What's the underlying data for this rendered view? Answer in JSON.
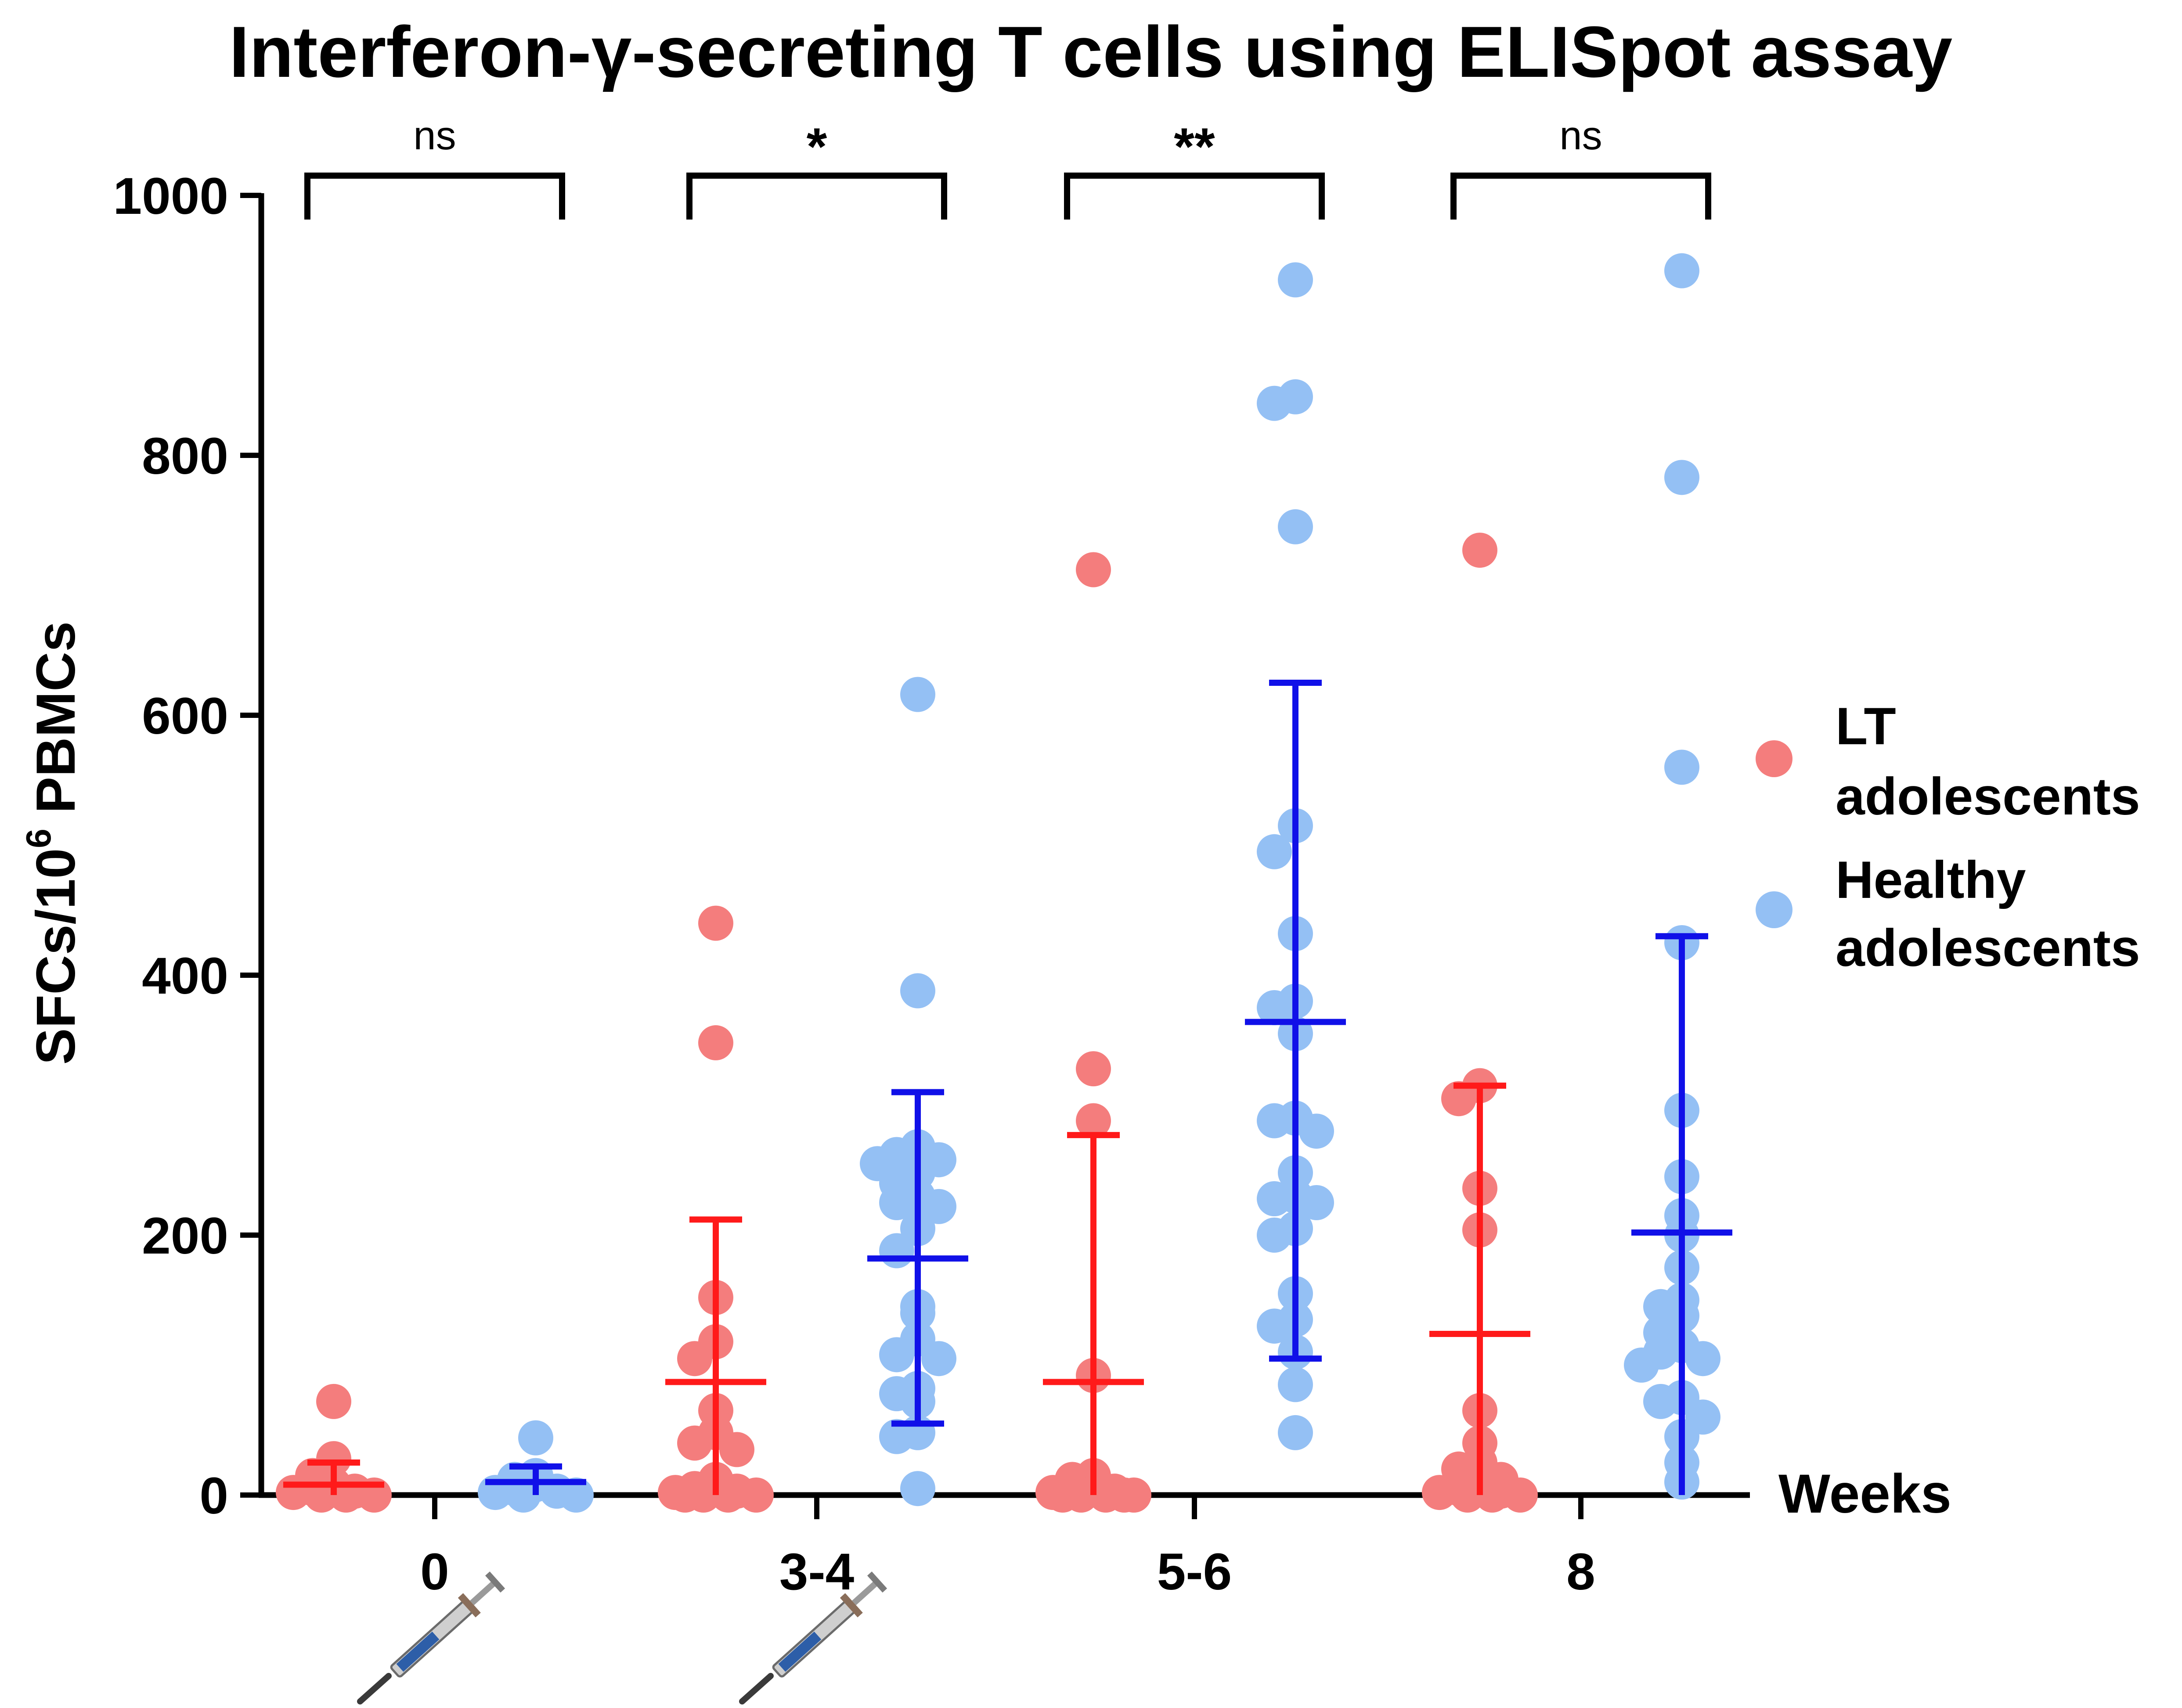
{
  "chart_data": {
    "type": "scatter",
    "title": "Interferon-γ-secreting T cells using ELISpot assay",
    "ylabel_main": "SFCs/10",
    "ylabel_sup": "6",
    "ylabel_tail": " PBMCs",
    "xlabel": "Weeks",
    "ylim": [
      0,
      1000
    ],
    "yticks": [
      "0",
      "200",
      "400",
      "600",
      "800",
      "1000"
    ],
    "categories": [
      "0",
      "3-4",
      "5-6",
      "8"
    ],
    "vaccination_weeks": [
      "0",
      "3-4"
    ],
    "colors": {
      "lt_points": "#f47d7d",
      "lt_bars": "#ff1a1a",
      "healthy_points": "#94c0f4",
      "healthy_bars": "#1010e8"
    },
    "legend": [
      {
        "line1": "LT",
        "line2": "adolescents"
      },
      {
        "line1": "Healthy",
        "line2": "adolescents"
      }
    ],
    "significance": [
      "ns",
      "*",
      "**",
      "ns"
    ],
    "series": [
      {
        "name": "LT adolescents",
        "groups": [
          {
            "points": [
              72,
              28,
              15,
              8,
              5,
              3,
              2,
              0,
              0,
              0
            ],
            "mean": 8,
            "sd_low": 0,
            "sd_high": 25
          },
          {
            "points": [
              440,
              348,
              152,
              118,
              105,
              65,
              48,
              40,
              35,
              12,
              8,
              5,
              3,
              2,
              0,
              0,
              0,
              0
            ],
            "mean": 87,
            "sd_low": 0,
            "sd_high": 212
          },
          {
            "points": [
              712,
              328,
              288,
              92,
              15,
              12,
              8,
              5,
              3,
              2,
              0,
              0,
              0,
              0,
              0
            ],
            "mean": 87,
            "sd_low": 0,
            "sd_high": 277
          },
          {
            "points": [
              727,
              315,
              305,
              236,
              204,
              65,
              40,
              25,
              20,
              12,
              8,
              5,
              3,
              2,
              0,
              0,
              0
            ],
            "mean": 124,
            "sd_low": 0,
            "sd_high": 315
          }
        ]
      },
      {
        "name": "Healthy adolescents",
        "groups": [
          {
            "points": [
              44,
              15,
              12,
              8,
              5,
              3,
              2,
              0,
              0
            ],
            "mean": 10,
            "sd_low": 0,
            "sd_high": 22
          },
          {
            "points": [
              616,
              388,
              268,
              262,
              258,
              255,
              248,
              240,
              230,
              225,
              222,
              205,
              188,
              145,
              140,
              120,
              108,
              105,
              82,
              78,
              72,
              48,
              45,
              5
            ],
            "mean": 182,
            "sd_low": 55,
            "sd_high": 310
          },
          {
            "points": [
              935,
              845,
              840,
              745,
              515,
              495,
              432,
              380,
              375,
              355,
              290,
              288,
              280,
              248,
              230,
              228,
              225,
              205,
              200,
              155,
              135,
              130,
              110,
              85,
              48
            ],
            "mean": 364,
            "sd_low": 105,
            "sd_high": 625
          },
          {
            "points": [
              942,
              783,
              560,
              425,
              296,
              245,
              215,
              200,
              175,
              150,
              145,
              138,
              125,
              115,
              110,
              105,
              100,
              75,
              72,
              60,
              45,
              25,
              10
            ],
            "mean": 202,
            "sd_low": 0,
            "sd_high": 430
          }
        ]
      }
    ]
  }
}
